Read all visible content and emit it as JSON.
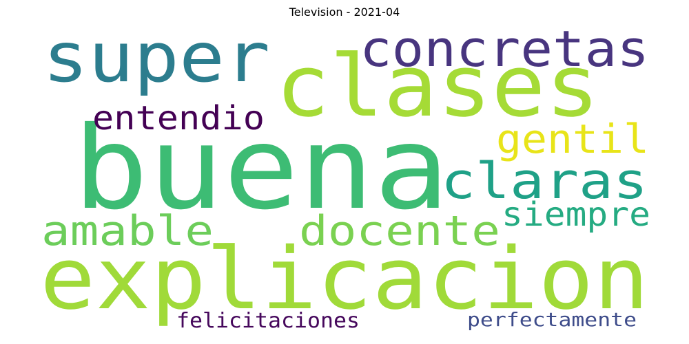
{
  "title": "Television - 2021-04",
  "words": [
    {
      "text": "buena",
      "color": "#3dbc74"
    },
    {
      "text": "clases",
      "color": "#a5db36"
    },
    {
      "text": "explicacion",
      "color": "#a0da39"
    },
    {
      "text": "super",
      "color": "#2c7d8e"
    },
    {
      "text": "concretas",
      "color": "#48357f"
    },
    {
      "text": "claras",
      "color": "#1fa187"
    },
    {
      "text": "gentil",
      "color": "#e8e419"
    },
    {
      "text": "entendio",
      "color": "#440154"
    },
    {
      "text": "amable",
      "color": "#6ccd5a"
    },
    {
      "text": "docente",
      "color": "#7ad151"
    },
    {
      "text": "siempre",
      "color": "#25ab82"
    },
    {
      "text": "felicitaciones",
      "color": "#46085c"
    },
    {
      "text": "perfectamente",
      "color": "#3e4c8a"
    }
  ]
}
